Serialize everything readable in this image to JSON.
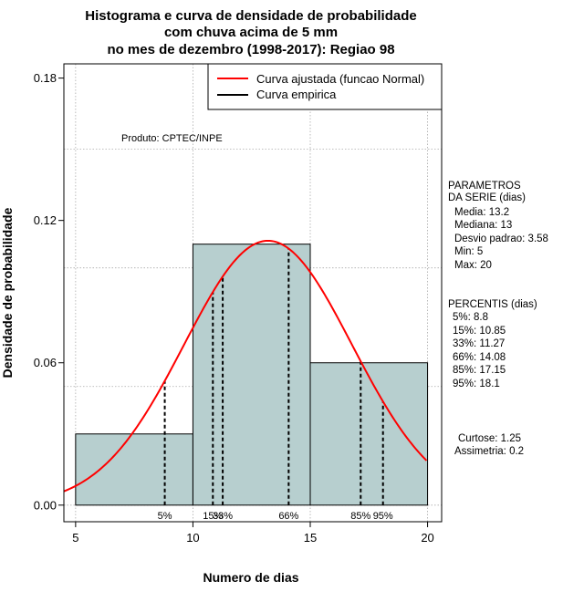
{
  "chart_data": {
    "type": "bar",
    "title_lines": [
      "Histograma e curva de densidade de probabilidade",
      "com chuva acima de 5 mm",
      "no mes de dezembro (1998-2017): Regiao 98"
    ],
    "xlabel": "Numero de dias",
    "ylabel": "Densidade de probabilidade",
    "xlim": [
      4.5,
      20.6
    ],
    "ylim": [
      -0.007,
      0.186
    ],
    "x_ticks": [
      5,
      10,
      15,
      20
    ],
    "x_tick_labels": [
      "5",
      "10",
      "15",
      "20"
    ],
    "y_ticks": [
      0.0,
      0.06,
      0.12,
      0.18
    ],
    "y_tick_labels": [
      "0.00",
      "0.06",
      "0.12",
      "0.18"
    ],
    "grid": true,
    "bins": [
      {
        "start": 5,
        "end": 10,
        "density": 0.03
      },
      {
        "start": 10,
        "end": 15,
        "density": 0.11
      },
      {
        "start": 15,
        "end": 20,
        "density": 0.06
      }
    ],
    "normal_fit": {
      "mean": 13.2,
      "sd": 3.58
    },
    "series": [
      {
        "name": "Curva ajustada (funcao Normal)",
        "color": "#ff0000"
      },
      {
        "name": "Curva empirica",
        "color": "#000000"
      }
    ],
    "legend_position": "top-right",
    "percentile_markers": [
      {
        "label": "5%",
        "value": 8.8
      },
      {
        "label": "15%",
        "value": 10.85
      },
      {
        "label": "33%",
        "value": 11.27
      },
      {
        "label": "66%",
        "value": 14.08
      },
      {
        "label": "85%",
        "value": 17.15
      },
      {
        "label": "95%",
        "value": 18.1
      }
    ],
    "product_label": "Produto: CPTEC/INPE",
    "parametros": {
      "header": [
        "PARAMETROS",
        "DA SERIE (dias)"
      ],
      "lines": [
        "Media: 13.2",
        "Mediana: 13",
        "Desvio padrao: 3.58",
        "Min: 5",
        "Max: 20"
      ]
    },
    "percentis": {
      "header": "PERCENTIS (dias)",
      "lines": [
        "5%: 8.8",
        "15%: 10.85",
        "33%: 11.27",
        "66%: 14.08",
        "85%: 17.15",
        "95%: 18.1"
      ]
    },
    "stats": [
      "Curtose: 1.25",
      "Assimetria: 0.2"
    ],
    "colors": {
      "bar_fill": "#b7cfcf",
      "grid": "#aaaaaa",
      "curve": "#ff0000"
    }
  }
}
